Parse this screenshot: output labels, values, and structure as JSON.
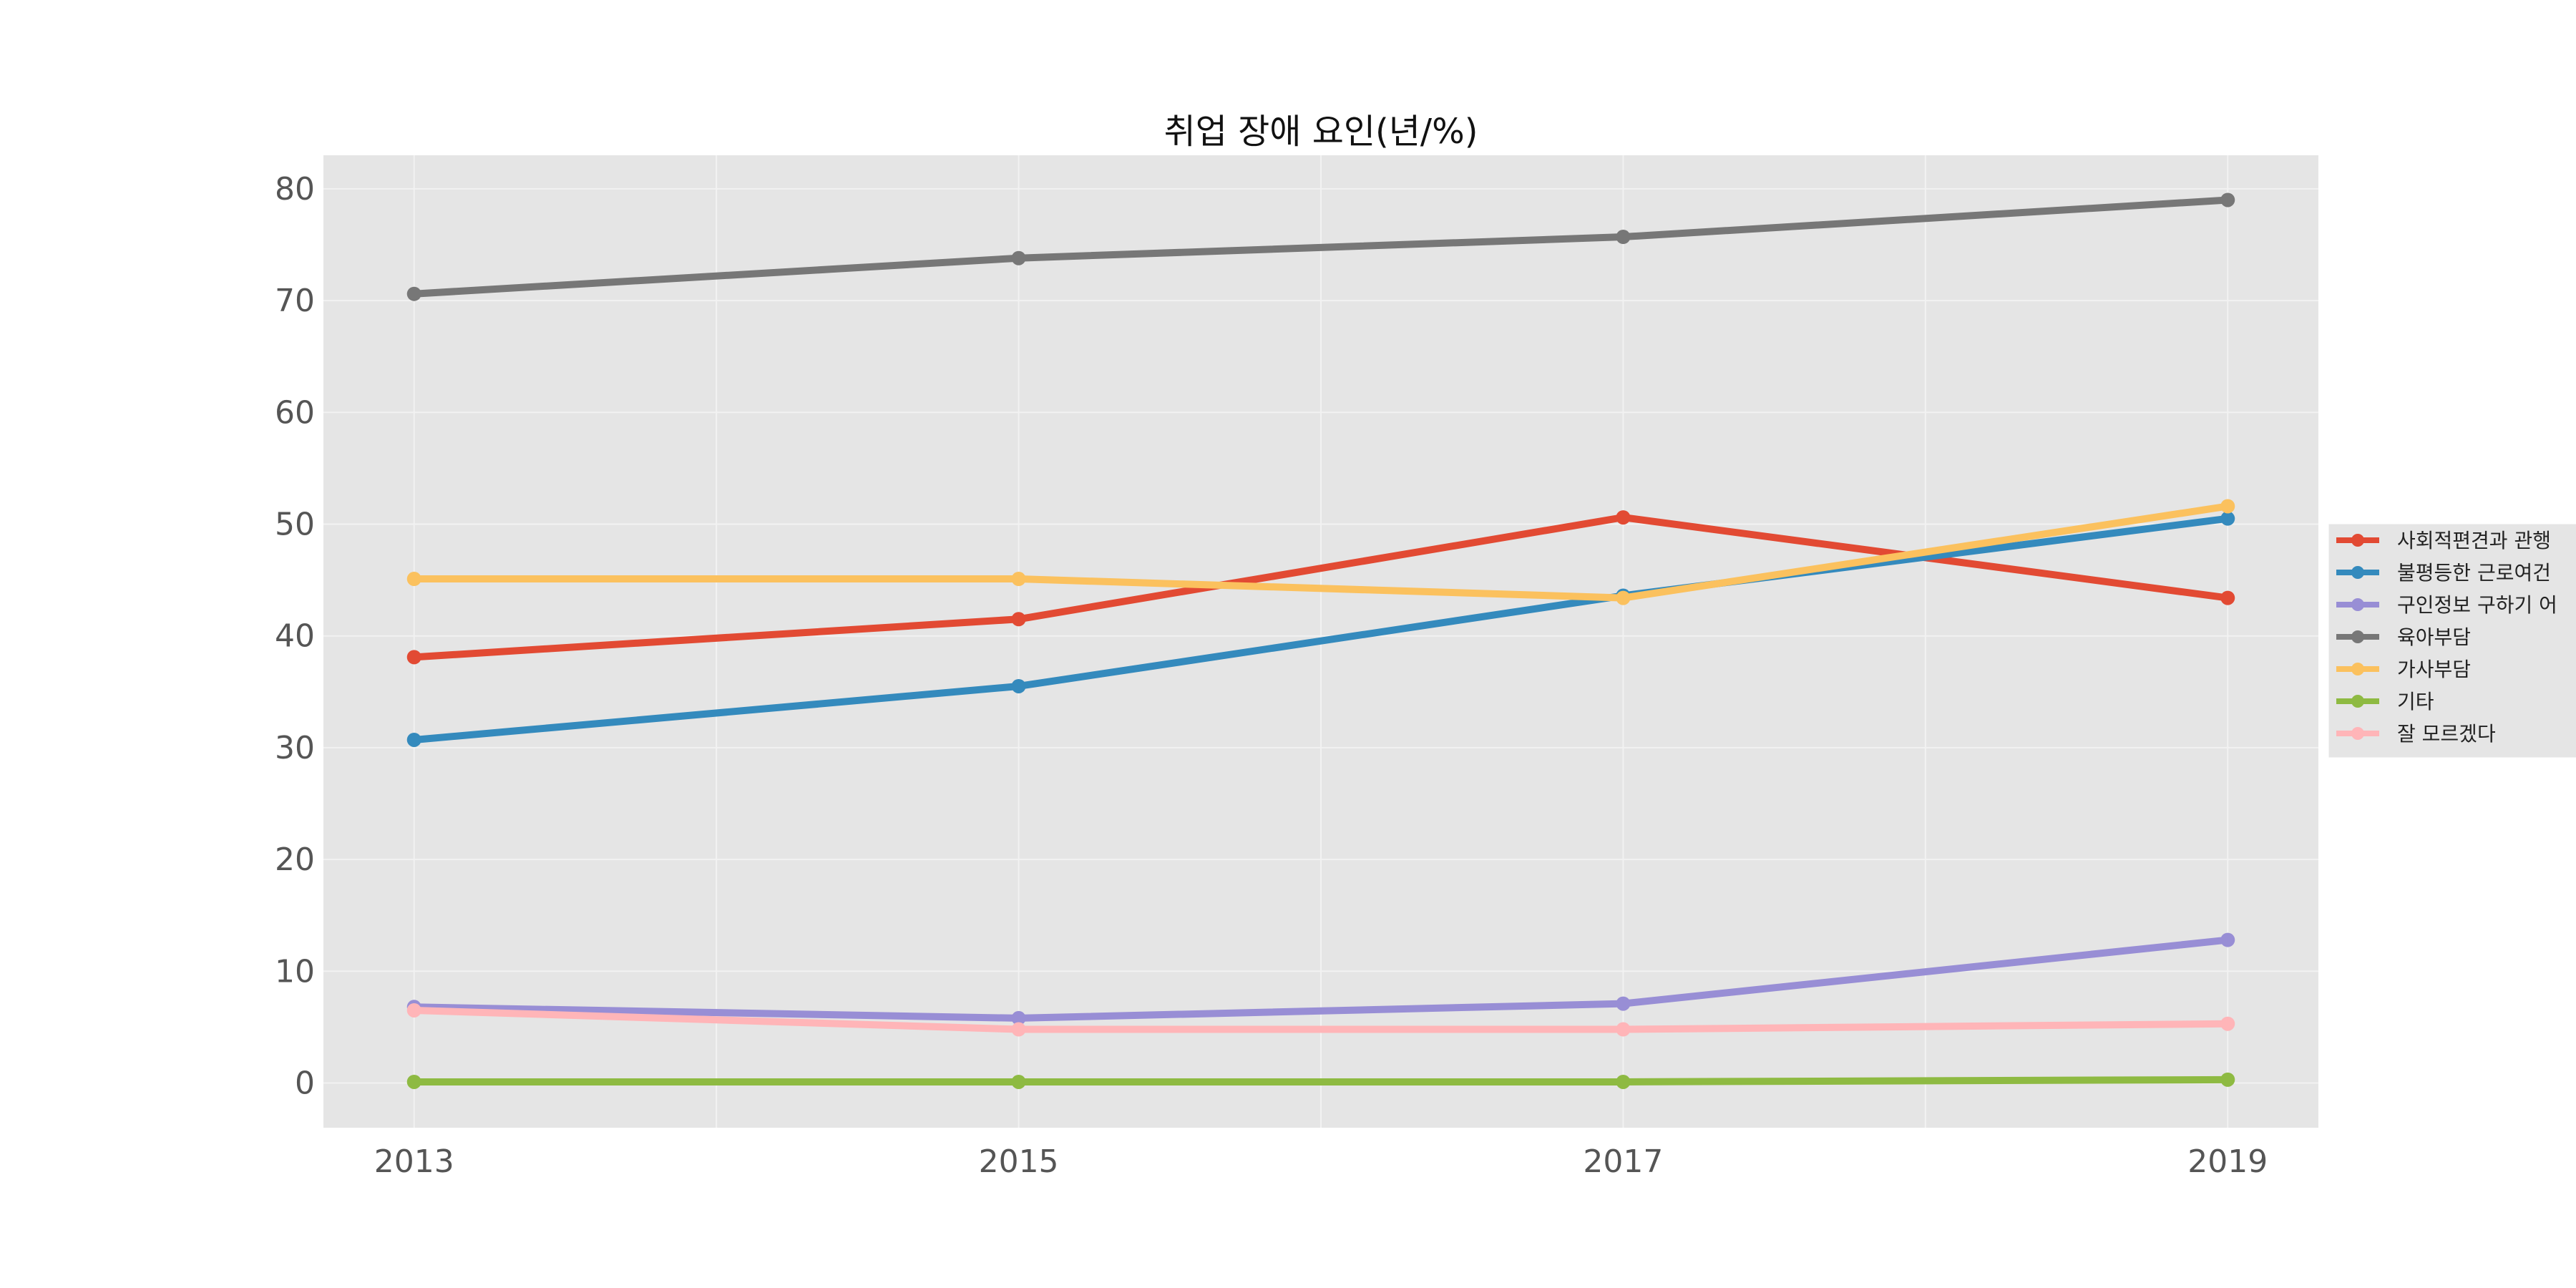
{
  "chart_data": {
    "type": "line",
    "title": "취업 장애 요인(년/%)",
    "xlabel": "",
    "ylabel": "",
    "x": [
      2013,
      2015,
      2017,
      2019
    ],
    "xlim": [
      2012.7,
      2019.3
    ],
    "ylim": [
      -4,
      83
    ],
    "xticks": [
      "2013",
      "2015",
      "2017",
      "2019"
    ],
    "yticks": [
      "0",
      "10",
      "20",
      "30",
      "40",
      "50",
      "60",
      "70",
      "80"
    ],
    "grid": true,
    "legend_position": "right",
    "series": [
      {
        "name": "사회적편견과 관행",
        "color": "#E24A33",
        "values": [
          38.1,
          41.5,
          50.6,
          43.4
        ]
      },
      {
        "name": "불평등한 근로여건",
        "color": "#348ABD",
        "values": [
          30.7,
          35.5,
          43.6,
          50.5
        ]
      },
      {
        "name": "구인정보 구하기 어",
        "color": "#988ED5",
        "values": [
          6.8,
          5.8,
          7.1,
          12.8
        ]
      },
      {
        "name": "육아부담",
        "color": "#777777",
        "values": [
          70.6,
          73.8,
          75.7,
          79.0
        ]
      },
      {
        "name": "가사부담",
        "color": "#FBC15E",
        "values": [
          45.1,
          45.1,
          43.4,
          51.6
        ]
      },
      {
        "name": "기타",
        "color": "#8EBA42",
        "values": [
          0.1,
          0.1,
          0.1,
          0.3
        ]
      },
      {
        "name": "잘 모르겠다",
        "color": "#FFB5B8",
        "values": [
          6.5,
          4.8,
          4.8,
          5.3
        ]
      }
    ]
  }
}
